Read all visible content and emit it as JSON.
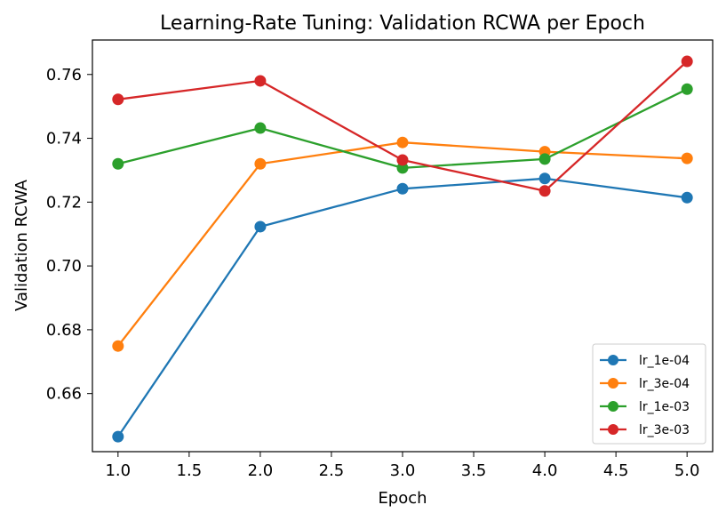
{
  "chart_data": {
    "type": "line",
    "title": "Learning-Rate Tuning: Validation RCWA per Epoch",
    "xlabel": "Epoch",
    "ylabel": "Validation RCWA",
    "x": [
      1.0,
      2.0,
      3.0,
      4.0,
      5.0
    ],
    "xlim": [
      0.82,
      5.18
    ],
    "ylim": [
      0.6418,
      0.7708
    ],
    "xticks": [
      1.0,
      1.5,
      2.0,
      2.5,
      3.0,
      3.5,
      4.0,
      4.5,
      5.0
    ],
    "xtick_labels": [
      "1.0",
      "1.5",
      "2.0",
      "2.5",
      "3.0",
      "3.5",
      "4.0",
      "4.5",
      "5.0"
    ],
    "yticks": [
      0.66,
      0.68,
      0.7,
      0.72,
      0.74,
      0.76
    ],
    "ytick_labels": [
      "0.66",
      "0.68",
      "0.70",
      "0.72",
      "0.74",
      "0.76"
    ],
    "grid": false,
    "legend_position": "lower-right",
    "series": [
      {
        "name": "lr_1e-04",
        "color": "#1f77b4",
        "values": [
          0.6465,
          0.7123,
          0.7242,
          0.7274,
          0.7214
        ]
      },
      {
        "name": "lr_3e-04",
        "color": "#ff7f0e",
        "values": [
          0.6749,
          0.732,
          0.7387,
          0.7358,
          0.7337
        ]
      },
      {
        "name": "lr_1e-03",
        "color": "#2ca02c",
        "values": [
          0.732,
          0.7432,
          0.7307,
          0.7335,
          0.7554
        ]
      },
      {
        "name": "lr_3e-03",
        "color": "#d62728",
        "values": [
          0.7522,
          0.758,
          0.7332,
          0.7235,
          0.7641
        ]
      }
    ]
  }
}
